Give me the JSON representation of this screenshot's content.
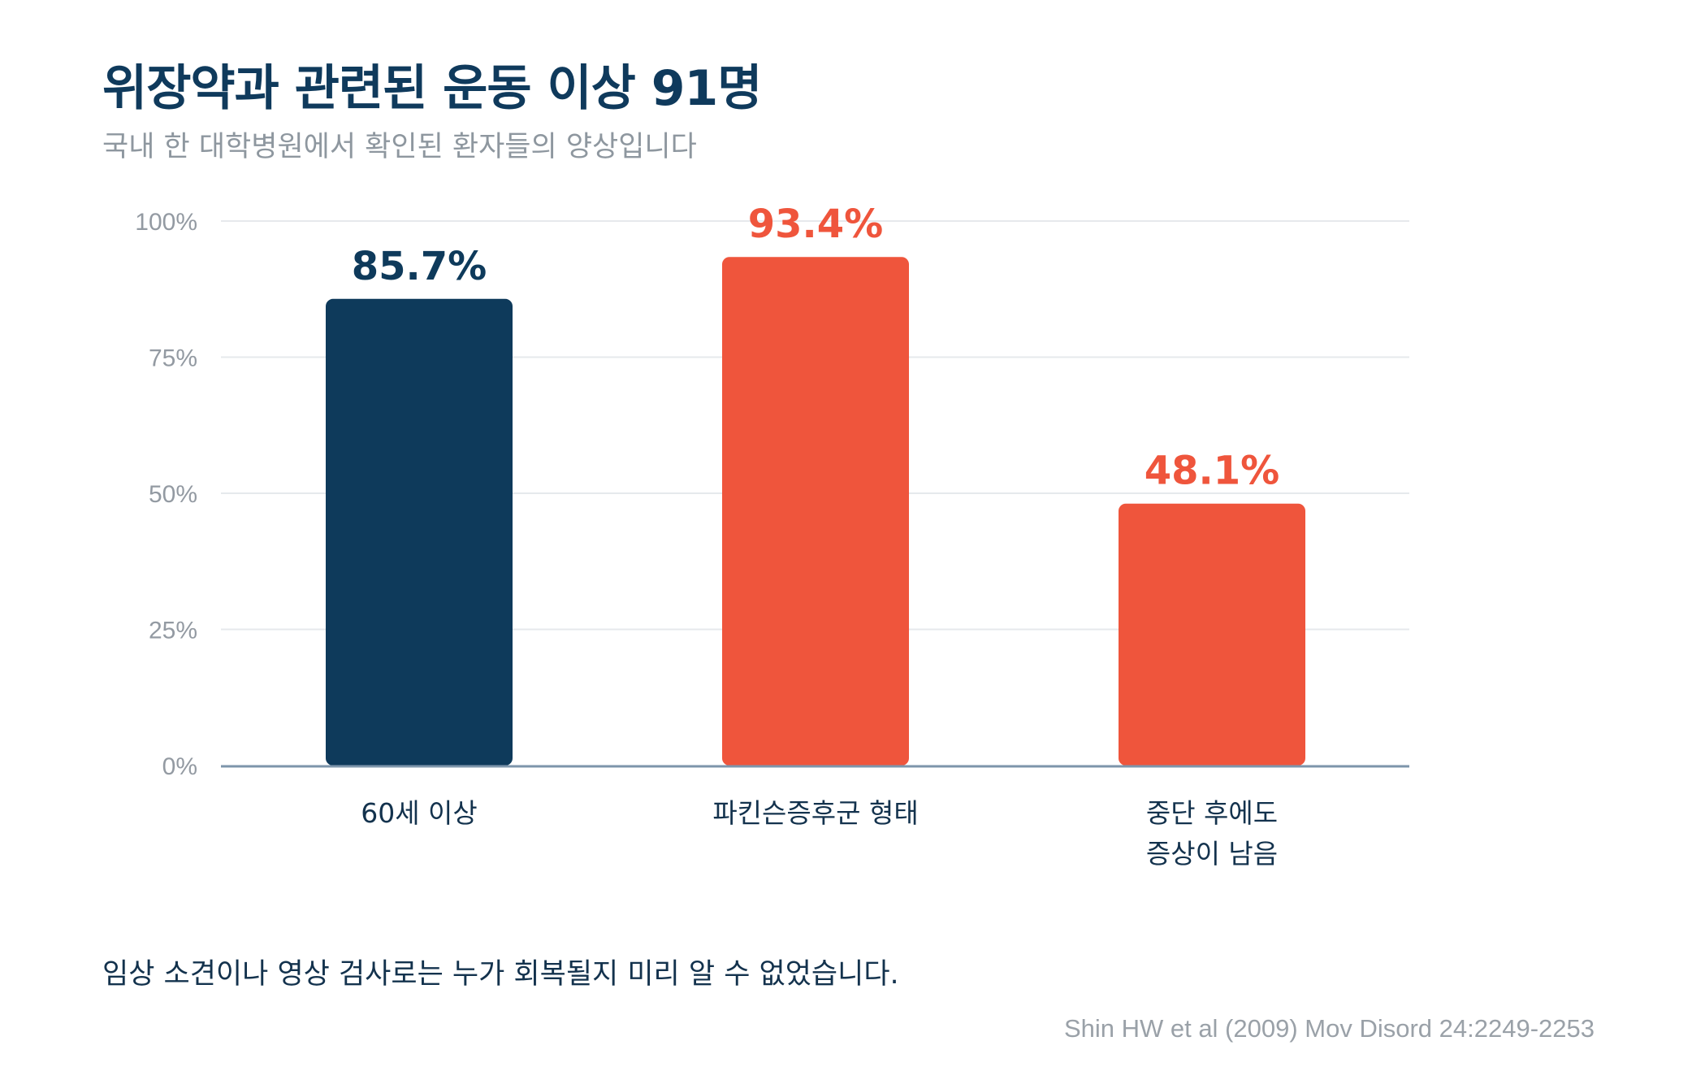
{
  "title": "위장약과 관련된 운동 이상 91명",
  "subtitle": "국내 한 대학병원에서 확인된 환자들의 양상입니다",
  "note": "임상 소견이나 영상 검사로는 누가 회복될지 미리 알 수 없었습니다.",
  "source": "Shin HW et al (2009) Mov Disord 24:2249-2253",
  "colors": {
    "navy": "#0e3a5b",
    "red": "#ef553c",
    "grid": "#e6e9ec",
    "axis": "#7d95ab",
    "tick": "#939aa2",
    "category": "#13324d"
  },
  "chart_data": {
    "type": "bar",
    "categories": [
      [
        "60세 이상"
      ],
      [
        "파킨슨증후군 형태"
      ],
      [
        "중단 후에도",
        "증상이 남음"
      ]
    ],
    "values": [
      85.7,
      93.4,
      48.1
    ],
    "value_labels": [
      "85.7%",
      "93.4%",
      "48.1%"
    ],
    "bar_colors": [
      "#0e3a5b",
      "#ef553c",
      "#ef553c"
    ],
    "ylim": [
      0,
      100
    ],
    "yticks": [
      0,
      25,
      50,
      75,
      100
    ],
    "ytick_labels": [
      "0%",
      "25%",
      "50%",
      "75%",
      "100%"
    ],
    "grid": true,
    "legend": "none"
  }
}
